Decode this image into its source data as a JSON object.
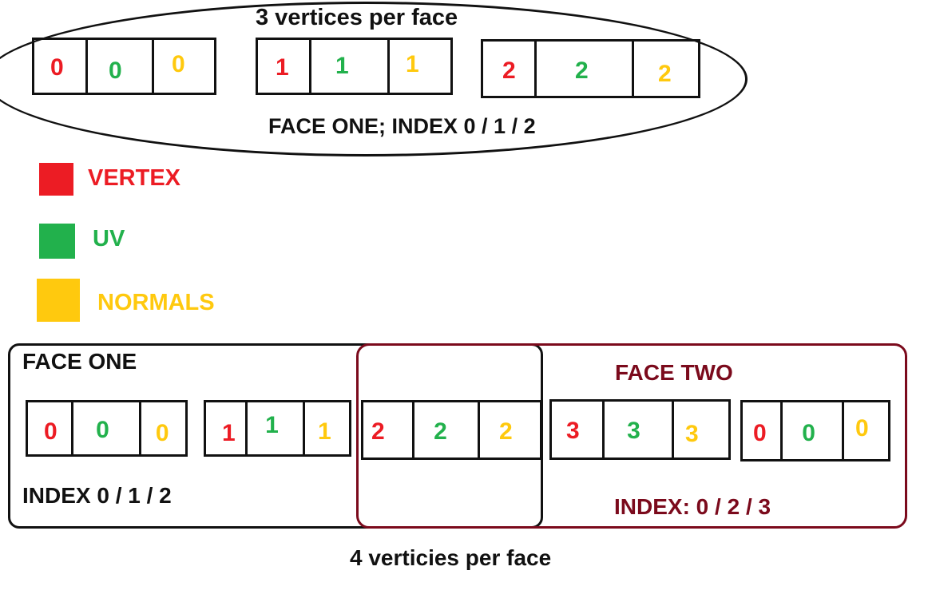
{
  "colors": {
    "vertex": "#ec1c24",
    "uv": "#22b14c",
    "normals": "#ffc90e",
    "face_two": "#7b0a1c",
    "ink": "#111111"
  },
  "top": {
    "heading": "3 vertices per face",
    "caption": "FACE ONE; INDEX 0 / 1 / 2",
    "groups": [
      [
        "0",
        "0",
        "0"
      ],
      [
        "1",
        "1",
        "1"
      ],
      [
        "2",
        "2",
        "2"
      ]
    ]
  },
  "legend": [
    {
      "label": "VERTEX",
      "color": "#ec1c24"
    },
    {
      "label": "UV",
      "color": "#22b14c"
    },
    {
      "label": "NORMALS",
      "color": "#ffc90e"
    }
  ],
  "bottom": {
    "face_one_label": "FACE ONE",
    "face_one_index": "INDEX 0 / 1 / 2",
    "face_two_label": "FACE TWO",
    "face_two_index": "INDEX: 0 / 2 / 3",
    "caption": "4 verticies per face",
    "groups": [
      [
        "0",
        "0",
        "0"
      ],
      [
        "1",
        "1",
        "1"
      ],
      [
        "2",
        "2",
        "2"
      ],
      [
        "3",
        "3",
        "3"
      ],
      [
        "0",
        "0",
        "0"
      ]
    ]
  }
}
